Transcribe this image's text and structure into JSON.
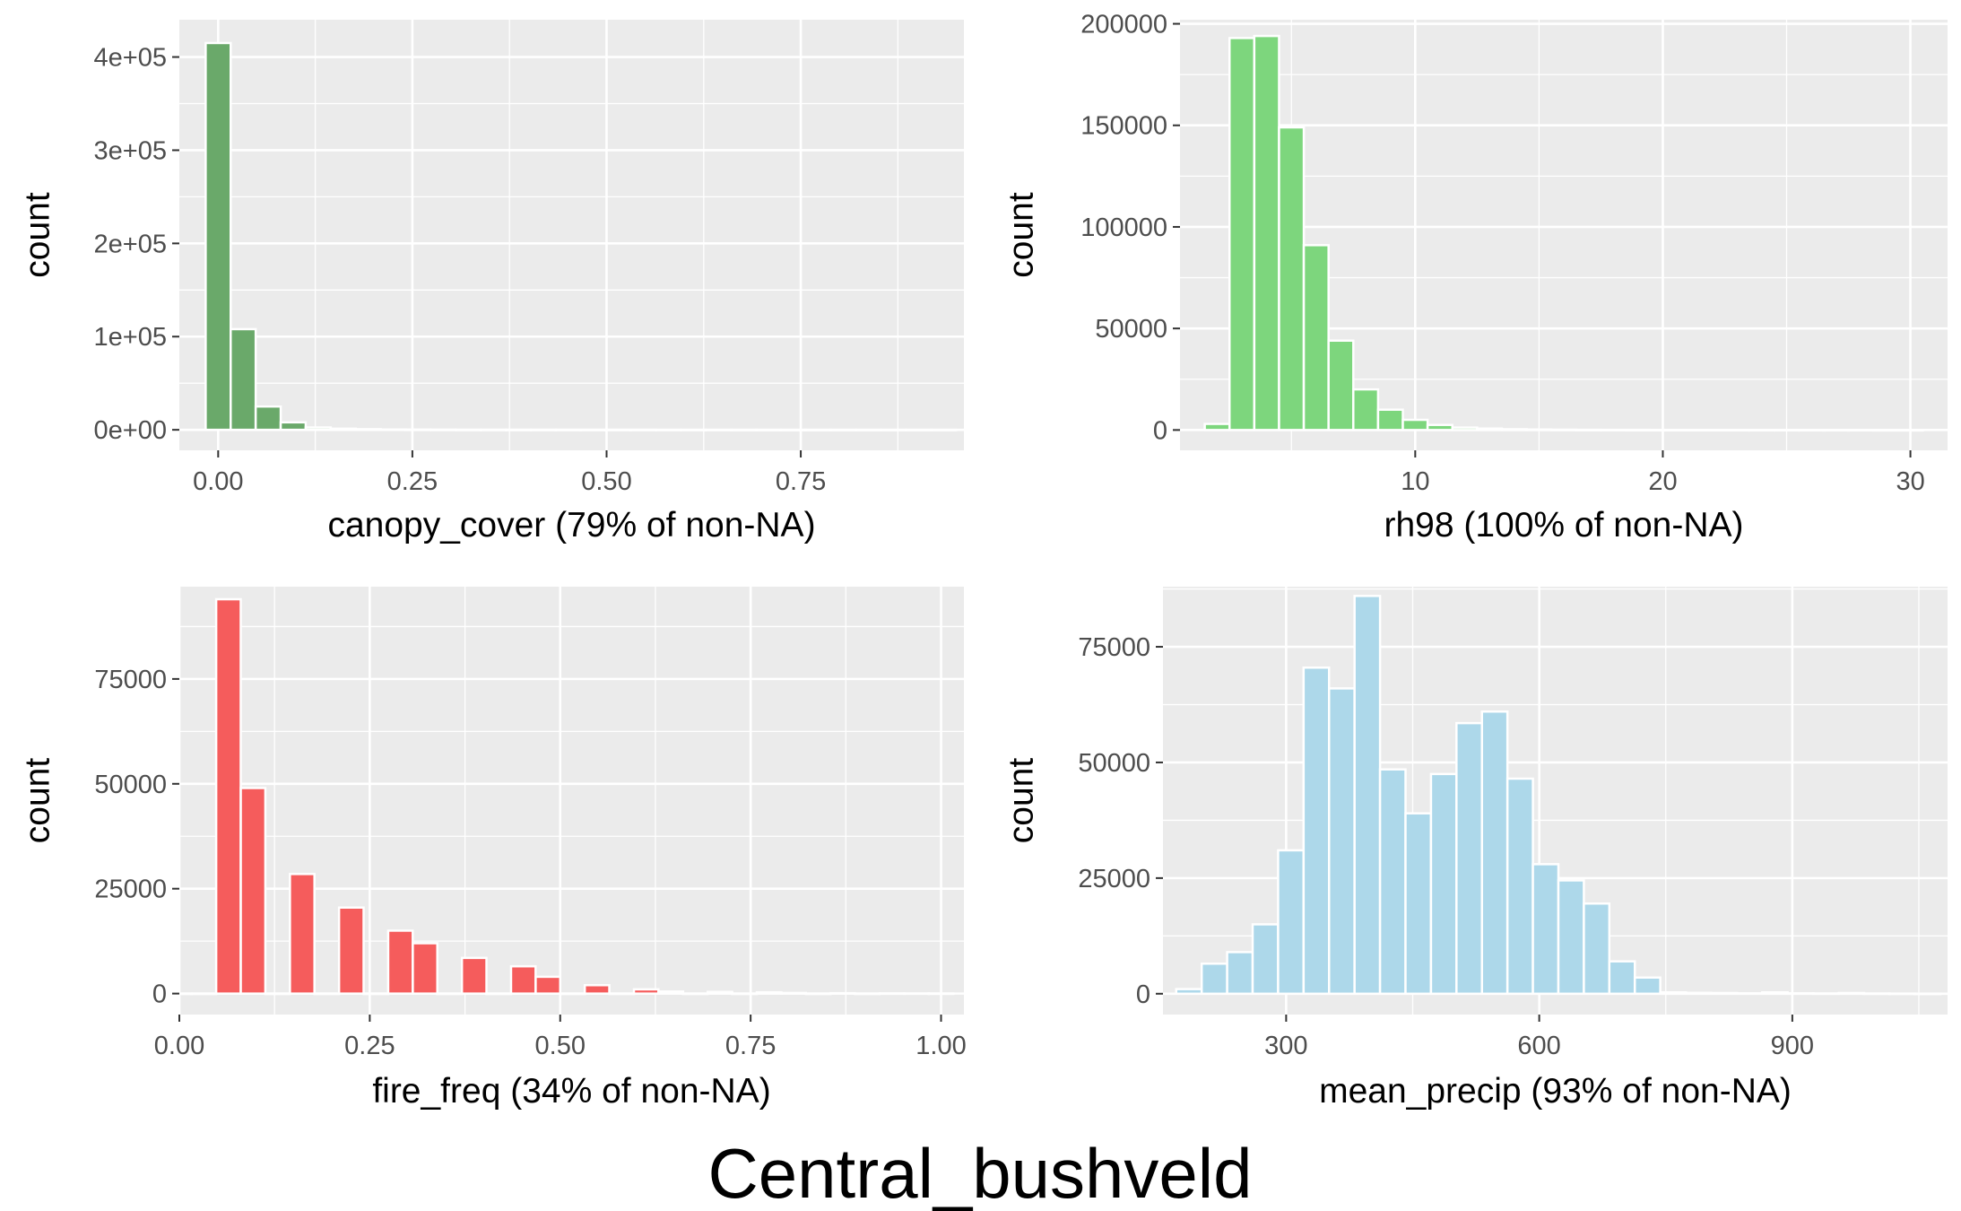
{
  "figure_title": "Central_bushveld",
  "chart_data": [
    {
      "type": "bar",
      "panel": "canopy",
      "xlabel": "canopy_cover (79% of non-NA)",
      "ylabel": "count",
      "color": "#6aa96a",
      "xlim": [
        -0.05,
        0.96
      ],
      "ylim": [
        -22000,
        440000
      ],
      "x_ticks": [
        {
          "value": 0,
          "label": "0.00"
        },
        {
          "value": 0.25,
          "label": "0.25"
        },
        {
          "value": 0.5,
          "label": "0.50"
        },
        {
          "value": 0.75,
          "label": "0.75"
        }
      ],
      "y_ticks": [
        {
          "value": 0,
          "label": "0e+00"
        },
        {
          "value": 100000,
          "label": "1e+05"
        },
        {
          "value": 200000,
          "label": "2e+05"
        },
        {
          "value": 300000,
          "label": "3e+05"
        },
        {
          "value": 400000,
          "label": "4e+05"
        }
      ],
      "bins": [
        {
          "x": 0.0,
          "y": 415000
        },
        {
          "x": 0.0322,
          "y": 108000
        },
        {
          "x": 0.0644,
          "y": 25000
        },
        {
          "x": 0.0966,
          "y": 8000
        },
        {
          "x": 0.1288,
          "y": 2500
        },
        {
          "x": 0.161,
          "y": 1200
        },
        {
          "x": 0.1932,
          "y": 700
        },
        {
          "x": 0.2254,
          "y": 400
        },
        {
          "x": 0.2576,
          "y": 250
        },
        {
          "x": 0.2898,
          "y": 150
        },
        {
          "x": 0.322,
          "y": 100
        },
        {
          "x": 0.3542,
          "y": 80
        },
        {
          "x": 0.3864,
          "y": 60
        },
        {
          "x": 0.4186,
          "y": 50
        },
        {
          "x": 0.4508,
          "y": 40
        },
        {
          "x": 0.483,
          "y": 30
        },
        {
          "x": 0.5152,
          "y": 25
        },
        {
          "x": 0.5474,
          "y": 20
        },
        {
          "x": 0.5796,
          "y": 15
        },
        {
          "x": 0.6118,
          "y": 12
        },
        {
          "x": 0.644,
          "y": 10
        },
        {
          "x": 0.6762,
          "y": 8
        },
        {
          "x": 0.7084,
          "y": 6
        },
        {
          "x": 0.7406,
          "y": 5
        },
        {
          "x": 0.7728,
          "y": 4
        },
        {
          "x": 0.805,
          "y": 3
        },
        {
          "x": 0.8372,
          "y": 3
        },
        {
          "x": 0.8694,
          "y": 2
        },
        {
          "x": 0.9016,
          "y": 2
        },
        {
          "x": 0.9338,
          "y": 1
        }
      ],
      "bin_width": 0.0322
    },
    {
      "type": "bar",
      "panel": "rh98",
      "xlabel": "rh98 (100% of non-NA)",
      "ylabel": "count",
      "color": "#7dd67d",
      "xlim": [
        0.5,
        31.5
      ],
      "ylim": [
        -10000,
        202000
      ],
      "x_ticks": [
        {
          "value": 10,
          "label": "10"
        },
        {
          "value": 20,
          "label": "20"
        },
        {
          "value": 30,
          "label": "30"
        }
      ],
      "y_ticks": [
        {
          "value": 0,
          "label": "0"
        },
        {
          "value": 50000,
          "label": "50000"
        },
        {
          "value": 100000,
          "label": "100000"
        },
        {
          "value": 150000,
          "label": "150000"
        },
        {
          "value": 200000,
          "label": "200000"
        }
      ],
      "bins": [
        {
          "x": 2.0,
          "y": 3000
        },
        {
          "x": 3.0,
          "y": 193000
        },
        {
          "x": 4.0,
          "y": 194000
        },
        {
          "x": 5.0,
          "y": 149000
        },
        {
          "x": 6.0,
          "y": 91000
        },
        {
          "x": 7.0,
          "y": 44000
        },
        {
          "x": 8.0,
          "y": 20000
        },
        {
          "x": 9.0,
          "y": 10000
        },
        {
          "x": 10.0,
          "y": 5000
        },
        {
          "x": 11.0,
          "y": 2500
        },
        {
          "x": 12.0,
          "y": 1200
        },
        {
          "x": 13.0,
          "y": 700
        },
        {
          "x": 14.0,
          "y": 400
        },
        {
          "x": 15.0,
          "y": 250
        },
        {
          "x": 16.0,
          "y": 150
        },
        {
          "x": 17.0,
          "y": 100
        },
        {
          "x": 18.0,
          "y": 80
        },
        {
          "x": 19.0,
          "y": 60
        },
        {
          "x": 20.0,
          "y": 50
        },
        {
          "x": 21.0,
          "y": 40
        },
        {
          "x": 22.0,
          "y": 30
        },
        {
          "x": 23.0,
          "y": 25
        },
        {
          "x": 24.0,
          "y": 20
        },
        {
          "x": 25.0,
          "y": 15
        },
        {
          "x": 26.0,
          "y": 10
        },
        {
          "x": 27.0,
          "y": 8
        },
        {
          "x": 28.0,
          "y": 6
        },
        {
          "x": 29.0,
          "y": 4
        },
        {
          "x": 30.0,
          "y": 2
        }
      ],
      "bin_width": 1.0
    },
    {
      "type": "bar",
      "panel": "fire",
      "xlabel": "fire_freq (34% of non-NA)",
      "ylabel": "count",
      "color": "#f55c5c",
      "xlim": [
        0.0,
        1.03
      ],
      "ylim": [
        -5000,
        97000
      ],
      "x_ticks": [
        {
          "value": 0,
          "label": "0.00"
        },
        {
          "value": 0.25,
          "label": "0.25"
        },
        {
          "value": 0.5,
          "label": "0.50"
        },
        {
          "value": 0.75,
          "label": "0.75"
        },
        {
          "value": 1.0,
          "label": "1.00"
        }
      ],
      "y_ticks": [
        {
          "value": 0,
          "label": "0"
        },
        {
          "value": 25000,
          "label": "25000"
        },
        {
          "value": 50000,
          "label": "50000"
        },
        {
          "value": 75000,
          "label": "75000"
        }
      ],
      "bins": [
        {
          "x": 0.0,
          "y": 0
        },
        {
          "x": 0.0322,
          "y": 0
        },
        {
          "x": 0.0645,
          "y": 94000
        },
        {
          "x": 0.0968,
          "y": 49000
        },
        {
          "x": 0.129,
          "y": 0
        },
        {
          "x": 0.1613,
          "y": 28500
        },
        {
          "x": 0.1935,
          "y": 0
        },
        {
          "x": 0.2258,
          "y": 20500
        },
        {
          "x": 0.2581,
          "y": 0
        },
        {
          "x": 0.2903,
          "y": 15000
        },
        {
          "x": 0.3226,
          "y": 12000
        },
        {
          "x": 0.3548,
          "y": 0
        },
        {
          "x": 0.3871,
          "y": 8500
        },
        {
          "x": 0.4194,
          "y": 0
        },
        {
          "x": 0.4516,
          "y": 6500
        },
        {
          "x": 0.4839,
          "y": 4000
        },
        {
          "x": 0.5161,
          "y": 0
        },
        {
          "x": 0.5484,
          "y": 2000
        },
        {
          "x": 0.5806,
          "y": 0
        },
        {
          "x": 0.6129,
          "y": 1000
        },
        {
          "x": 0.6452,
          "y": 500
        },
        {
          "x": 0.6774,
          "y": 0
        },
        {
          "x": 0.7097,
          "y": 400
        },
        {
          "x": 0.7419,
          "y": 0
        },
        {
          "x": 0.7742,
          "y": 300
        },
        {
          "x": 0.8065,
          "y": 150
        },
        {
          "x": 0.8387,
          "y": 0
        },
        {
          "x": 0.871,
          "y": 100
        },
        {
          "x": 0.9032,
          "y": 0
        },
        {
          "x": 0.9355,
          "y": 50
        },
        {
          "x": 0.9677,
          "y": 40
        },
        {
          "x": 1.0,
          "y": 30
        }
      ],
      "bin_width": 0.0322
    },
    {
      "type": "bar",
      "panel": "precip",
      "xlabel": "mean_precip (93% of non-NA)",
      "ylabel": "count",
      "color": "#add8ea",
      "xlim": [
        154,
        1084
      ],
      "ylim": [
        -4500,
        88000
      ],
      "x_ticks": [
        {
          "value": 300,
          "label": "300"
        },
        {
          "value": 600,
          "label": "600"
        },
        {
          "value": 900,
          "label": "900"
        }
      ],
      "y_ticks": [
        {
          "value": 0,
          "label": "0"
        },
        {
          "value": 25000,
          "label": "25000"
        },
        {
          "value": 50000,
          "label": "50000"
        },
        {
          "value": 75000,
          "label": "75000"
        }
      ],
      "bins": [
        {
          "x": 184.8,
          "y": 1000
        },
        {
          "x": 215.0,
          "y": 6500
        },
        {
          "x": 245.2,
          "y": 9000
        },
        {
          "x": 275.4,
          "y": 15000
        },
        {
          "x": 305.6,
          "y": 31000
        },
        {
          "x": 335.8,
          "y": 70500
        },
        {
          "x": 366.0,
          "y": 66000
        },
        {
          "x": 396.2,
          "y": 86000
        },
        {
          "x": 426.4,
          "y": 48500
        },
        {
          "x": 456.6,
          "y": 39000
        },
        {
          "x": 486.8,
          "y": 47500
        },
        {
          "x": 517.0,
          "y": 58500
        },
        {
          "x": 547.2,
          "y": 61000
        },
        {
          "x": 577.4,
          "y": 46500
        },
        {
          "x": 607.6,
          "y": 28000
        },
        {
          "x": 637.8,
          "y": 24500
        },
        {
          "x": 668.0,
          "y": 19500
        },
        {
          "x": 698.2,
          "y": 7000
        },
        {
          "x": 728.4,
          "y": 3500
        },
        {
          "x": 758.6,
          "y": 300
        },
        {
          "x": 788.8,
          "y": 200
        },
        {
          "x": 819.0,
          "y": 150
        },
        {
          "x": 849.2,
          "y": 100
        },
        {
          "x": 879.4,
          "y": 300
        },
        {
          "x": 909.6,
          "y": 100
        },
        {
          "x": 939.8,
          "y": 80
        },
        {
          "x": 970.0,
          "y": 150
        },
        {
          "x": 1000.2,
          "y": 60
        },
        {
          "x": 1030.4,
          "y": 40
        },
        {
          "x": 1060.6,
          "y": 20
        }
      ],
      "bin_width": 30.2
    }
  ]
}
